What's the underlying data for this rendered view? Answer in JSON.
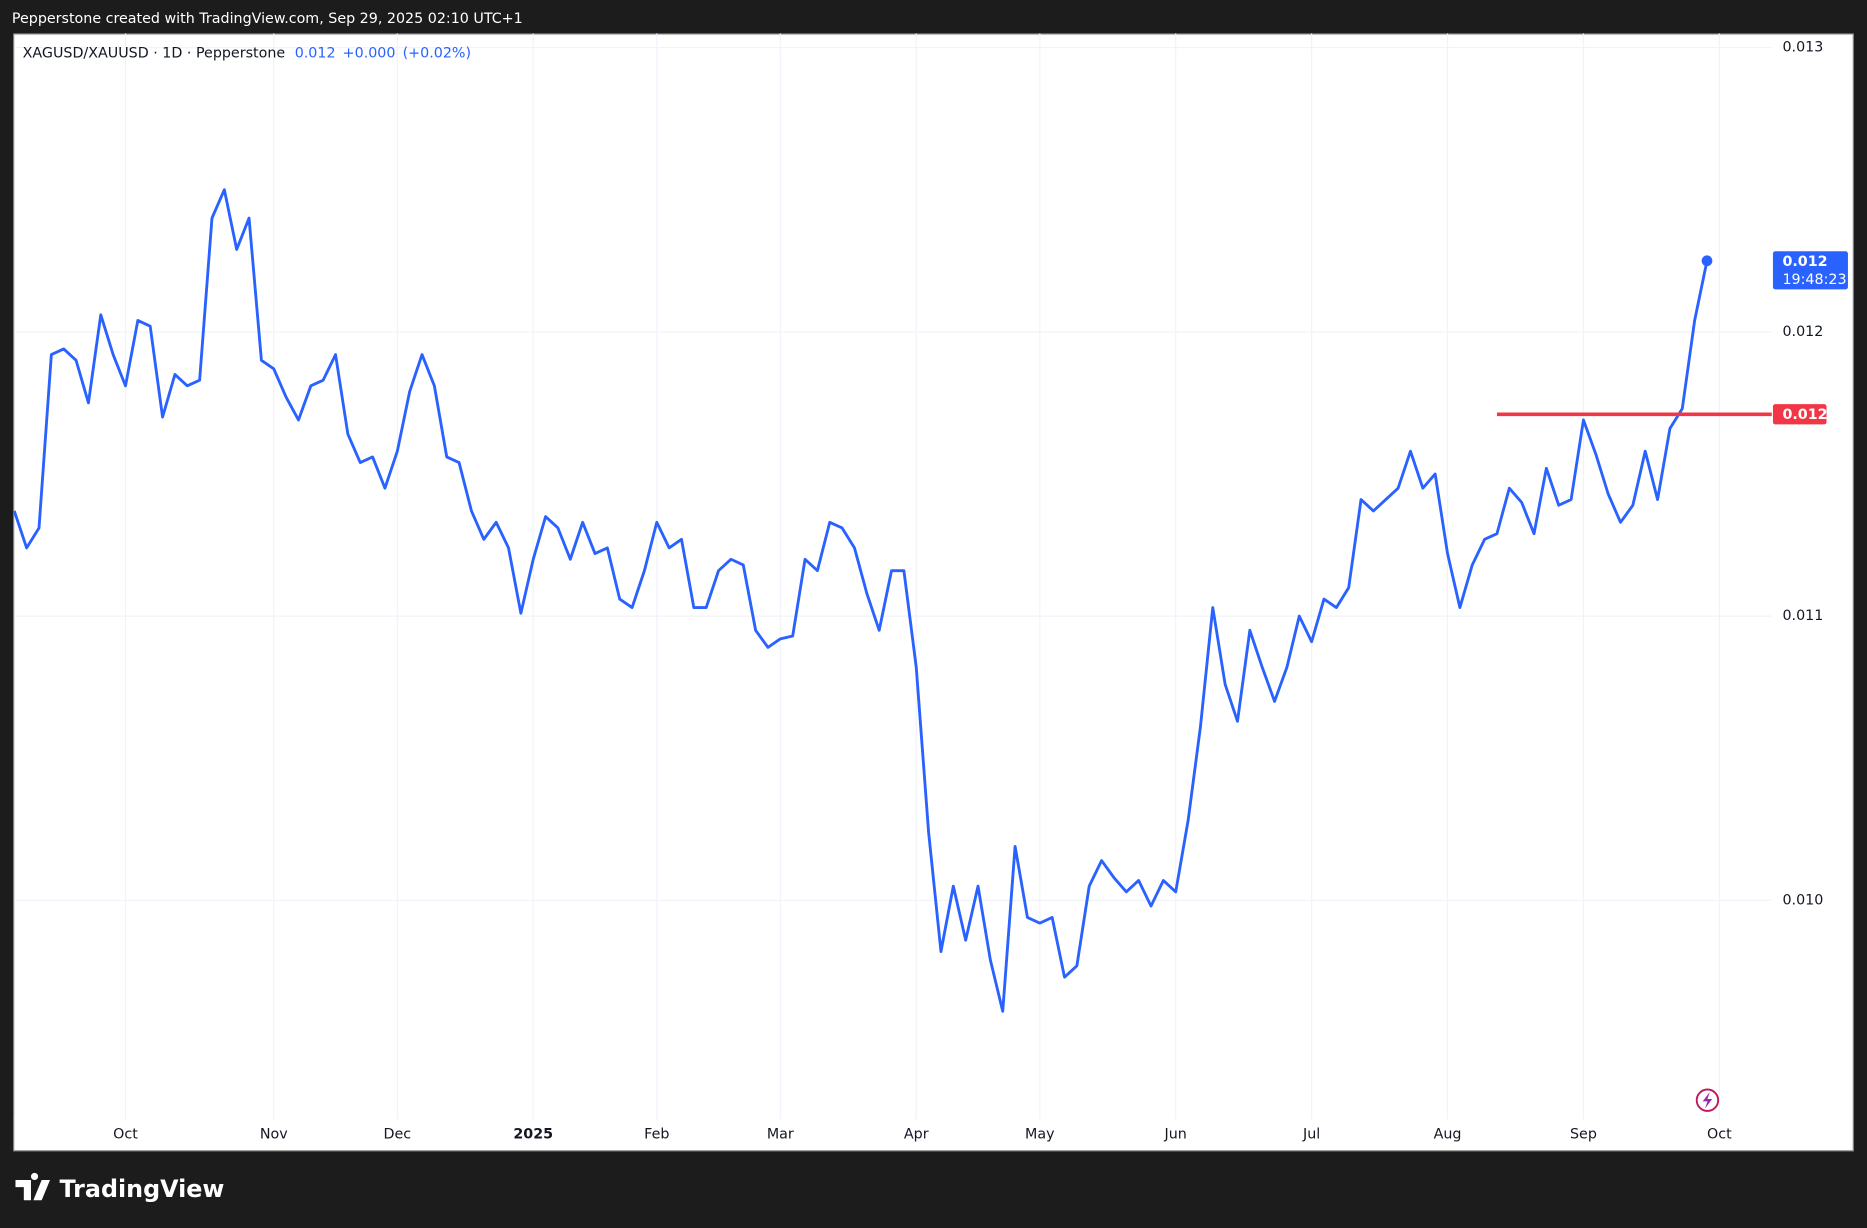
{
  "top_bar": "Pepperstone created with TradingView.com, Sep 29, 2025 02:10 UTC+1",
  "footer_logo": "TradingView",
  "chart_data": {
    "type": "line",
    "symbol_title": "XAGUSD/XAUUSD · 1D · Pepperstone",
    "last_price": "0.012",
    "change": "+0.000",
    "change_pct": "(+0.02%)",
    "color": "#2962ff",
    "grid": true,
    "categories": [
      null,
      null,
      null,
      null,
      null,
      null,
      null,
      null,
      null,
      "Oct",
      null,
      null,
      null,
      null,
      null,
      null,
      null,
      null,
      null,
      null,
      null,
      "Nov",
      null,
      null,
      null,
      null,
      null,
      null,
      null,
      null,
      null,
      "Dec",
      null,
      null,
      null,
      null,
      null,
      null,
      null,
      null,
      null,
      null,
      "2025",
      null,
      null,
      null,
      null,
      null,
      null,
      null,
      null,
      null,
      "Feb",
      null,
      null,
      null,
      null,
      null,
      null,
      null,
      null,
      null,
      "Mar",
      null,
      null,
      null,
      null,
      null,
      null,
      null,
      null,
      null,
      null,
      "Apr",
      null,
      null,
      null,
      null,
      null,
      null,
      null,
      null,
      null,
      "May",
      null,
      null,
      null,
      null,
      null,
      null,
      null,
      null,
      null,
      null,
      "Jun",
      null,
      null,
      null,
      null,
      null,
      null,
      null,
      null,
      null,
      null,
      "Jul",
      null,
      null,
      null,
      null,
      null,
      null,
      null,
      null,
      null,
      null,
      "Aug",
      null,
      null,
      null,
      null,
      null,
      null,
      null,
      null,
      null,
      null,
      "Sep",
      null,
      null,
      null,
      null,
      null,
      null,
      null,
      null,
      null,
      null,
      "Oct"
    ],
    "values": [
      0.01137,
      0.01124,
      0.01131,
      0.01192,
      0.01194,
      0.0119,
      0.01175,
      0.01206,
      0.01192,
      0.01181,
      0.01204,
      0.01202,
      0.0117,
      0.01185,
      0.01181,
      0.01183,
      0.0124,
      0.0125,
      0.01229,
      0.0124,
      0.0119,
      0.01187,
      0.01177,
      0.01169,
      0.01181,
      0.01183,
      0.01192,
      0.01164,
      0.01154,
      0.01156,
      0.01145,
      0.01158,
      0.01179,
      0.01192,
      0.01181,
      0.01156,
      0.01154,
      0.01137,
      0.01127,
      0.01133,
      0.01124,
      0.01101,
      0.0112,
      0.01135,
      0.01131,
      0.0112,
      0.01133,
      0.01122,
      0.01124,
      0.01106,
      0.01103,
      0.01116,
      0.01133,
      0.01124,
      0.01127,
      0.01103,
      0.01103,
      0.01116,
      0.0112,
      0.01118,
      0.01095,
      0.01089,
      0.01092,
      0.01093,
      0.0112,
      0.01116,
      0.01133,
      0.01131,
      0.01124,
      0.01108,
      0.01095,
      0.01116,
      0.01116,
      0.01082,
      0.01024,
      0.00982,
      0.01005,
      0.00986,
      0.01005,
      0.00979,
      0.00961,
      0.01019,
      0.00994,
      0.00992,
      0.00994,
      0.00973,
      0.00977,
      0.01005,
      0.01014,
      0.01008,
      0.01003,
      0.01007,
      0.00998,
      0.01007,
      0.01003,
      0.01028,
      0.01061,
      0.01103,
      0.01076,
      0.01063,
      0.01095,
      0.01082,
      0.0107,
      0.01082,
      0.011,
      0.01091,
      0.01106,
      0.01103,
      0.0111,
      0.01141,
      0.01137,
      0.01141,
      0.01145,
      0.01158,
      0.01145,
      0.0115,
      0.01122,
      0.01103,
      0.01118,
      0.01127,
      0.01129,
      0.01145,
      0.0114,
      0.01129,
      0.01152,
      0.01139,
      0.01141,
      0.01169,
      0.01157,
      0.01143,
      0.01133,
      0.01139,
      0.01158,
      0.01141,
      0.01166,
      0.01173,
      0.01204,
      0.01225,
      null
    ],
    "ylim": [
      0.00923,
      0.01305
    ],
    "yticks": [
      0.013,
      0.012,
      0.011,
      {
        "value": 0.01,
        "label": "0.010"
      }
    ],
    "last_value_label": "0.012",
    "countdown": "19:48:23",
    "hline": {
      "value": 0.01171,
      "label": "0.012",
      "color": "#f23645",
      "x_start": 120
    }
  }
}
